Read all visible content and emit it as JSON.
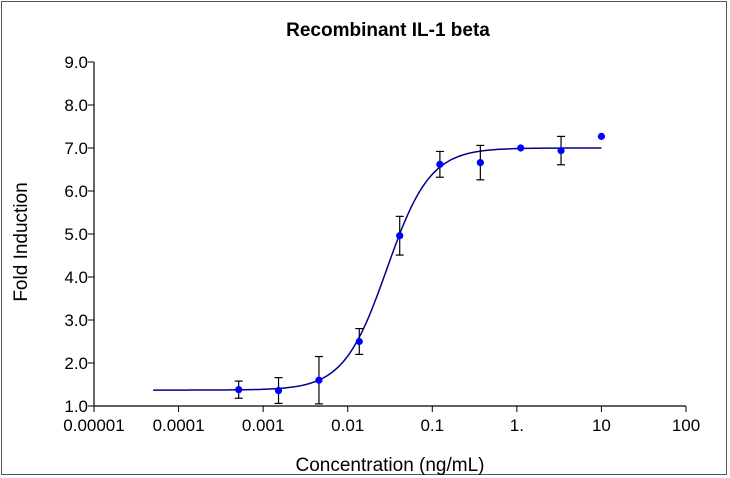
{
  "chart_data": {
    "type": "scatter",
    "title": "Recombinant IL-1 beta",
    "xlabel": "Concentration (ng/mL)",
    "ylabel": "Fold Induction",
    "xscale": "log",
    "xlim": [
      1e-05,
      100
    ],
    "ylim": [
      1.0,
      9.0
    ],
    "x_tick_values": [
      1e-05,
      0.0001,
      0.001,
      0.01,
      0.1,
      1,
      10,
      100
    ],
    "x_tick_labels": [
      "0.00001",
      "0.0001",
      "0.001",
      "0.01",
      "0.1",
      "1.",
      "10",
      "100"
    ],
    "y_tick_values": [
      1,
      2,
      3,
      4,
      5,
      6,
      7,
      8,
      9
    ],
    "y_tick_labels": [
      "1.0",
      "2.0",
      "3.0",
      "4.0",
      "5.0",
      "6.0",
      "7.0",
      "8.0",
      "9.0"
    ],
    "series": [
      {
        "name": "Recombinant IL-1 beta",
        "x": [
          0.000514,
          0.00152,
          0.00457,
          0.0137,
          0.0412,
          0.123,
          0.37,
          1.11,
          3.33,
          10
        ],
        "y": [
          1.38,
          1.36,
          1.6,
          2.5,
          4.96,
          6.62,
          6.66,
          7.0,
          6.94,
          7.27
        ],
        "error": [
          0.2,
          0.3,
          0.55,
          0.3,
          0.45,
          0.3,
          0.4,
          0.03,
          0.33,
          0.05
        ]
      }
    ],
    "fit": {
      "model": "4PL",
      "bottom": 1.37,
      "top": 7.0,
      "ec50": 0.029,
      "hill": 1.7,
      "x_range": [
        5e-05,
        10
      ]
    },
    "colors": {
      "points": "#0000ff",
      "curve": "#00008b",
      "error_bars": "#000000",
      "axes": "#000000"
    }
  }
}
